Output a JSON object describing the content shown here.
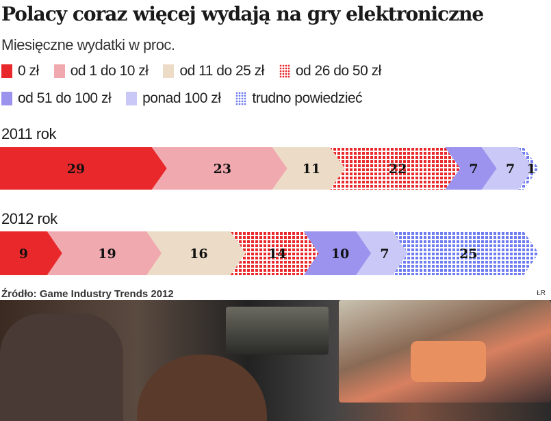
{
  "chart_data": {
    "type": "bar",
    "orientation": "horizontal-stacked",
    "title": "Polacy coraz więcej wydają na gry elektroniczne",
    "subtitle": "Miesięczne wydatki w proc.",
    "categories": [
      "2011 rok",
      "2012 rok"
    ],
    "series": [
      {
        "name": "0 zł",
        "color": "#e8282a",
        "pattern": "solid",
        "values": [
          29,
          9
        ]
      },
      {
        "name": "od 1 do 10 zł",
        "color": "#f0a9ae",
        "pattern": "solid",
        "values": [
          23,
          19
        ]
      },
      {
        "name": "od 11 do 25 zł",
        "color": "#ecdcc7",
        "pattern": "solid",
        "values": [
          11,
          16
        ]
      },
      {
        "name": "od 26 do 50 zł",
        "color": "#e8282a",
        "pattern": "dotted",
        "values": [
          22,
          14
        ]
      },
      {
        "name": "od 51 do 100 zł",
        "color": "#9b93ee",
        "pattern": "solid",
        "values": [
          7,
          10
        ]
      },
      {
        "name": "ponad 100 zł",
        "color": "#c9c8f6",
        "pattern": "solid",
        "values": [
          7,
          7
        ]
      },
      {
        "name": "trudno powiedzieć",
        "color": "#6f7cf0",
        "pattern": "dotted",
        "values": [
          1,
          25
        ]
      }
    ],
    "legend": "top",
    "grid": false
  },
  "source": "Źródło: Game Industry Trends 2012",
  "credit": "ŁR"
}
